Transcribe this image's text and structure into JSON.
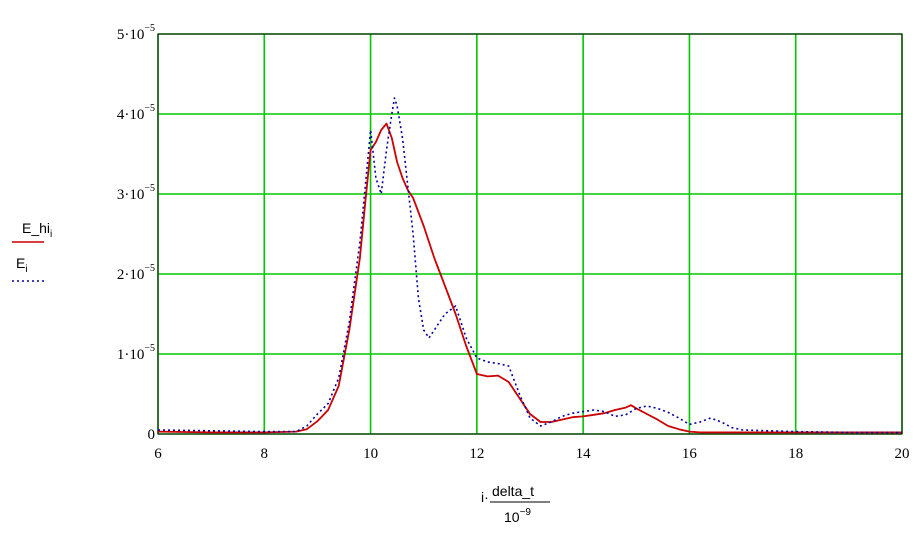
{
  "chart_data": {
    "type": "line",
    "title": "",
    "xlim": [
      6,
      20
    ],
    "ylim": [
      0,
      5e-05
    ],
    "grid": true,
    "grid_color": "#00c800",
    "x_ticks": [
      6,
      8,
      10,
      12,
      14,
      16,
      18,
      20
    ],
    "x_tick_labels": [
      "6",
      "8",
      "10",
      "12",
      "14",
      "16",
      "18",
      "20"
    ],
    "y_ticks": [
      0,
      1e-05,
      2e-05,
      3e-05,
      4e-05,
      5e-05
    ],
    "y_tick_labels": [
      {
        "mant": "0",
        "exp": ""
      },
      {
        "mant": "1·10",
        "exp": "−5"
      },
      {
        "mant": "2·10",
        "exp": "−5"
      },
      {
        "mant": "3·10",
        "exp": "−5"
      },
      {
        "mant": "4·10",
        "exp": "−5"
      },
      {
        "mant": "5·10",
        "exp": "−5"
      }
    ],
    "xlabel": {
      "prefix": "i·",
      "numerator": "delta_t",
      "denominator_base": "10",
      "denominator_exp": "−9"
    },
    "series": [
      {
        "label_main": "E_hi",
        "label_sub": "i",
        "color": "#cc0000",
        "style": "solid",
        "x": [
          6,
          7,
          8,
          8.6,
          8.8,
          9.0,
          9.2,
          9.4,
          9.6,
          9.8,
          9.9,
          10.0,
          10.1,
          10.2,
          10.3,
          10.4,
          10.5,
          10.6,
          10.7,
          10.8,
          11.0,
          11.2,
          11.4,
          11.6,
          11.8,
          12.0,
          12.2,
          12.4,
          12.6,
          12.8,
          13.0,
          13.2,
          13.4,
          13.6,
          13.8,
          14.0,
          14.2,
          14.4,
          14.6,
          14.8,
          14.9,
          15.0,
          15.2,
          15.4,
          15.6,
          15.8,
          16.0,
          16.2,
          16.5,
          17,
          18,
          19,
          20
        ],
        "y": [
          3e-07,
          2e-07,
          2e-07,
          3e-07,
          6e-07,
          1.6e-06,
          3e-06,
          6e-06,
          1.3e-05,
          2.2e-05,
          2.9e-05,
          3.55e-05,
          3.65e-05,
          3.8e-05,
          3.88e-05,
          3.7e-05,
          3.4e-05,
          3.2e-05,
          3.05e-05,
          2.95e-05,
          2.6e-05,
          2.2e-05,
          1.85e-05,
          1.5e-05,
          1.1e-05,
          7.5e-06,
          7.2e-06,
          7.3e-06,
          6.5e-06,
          4.5e-06,
          2.5e-06,
          1.5e-06,
          1.5e-06,
          1.8e-06,
          2.1e-06,
          2.2e-06,
          2.4e-06,
          2.6e-06,
          3e-06,
          3.3e-06,
          3.6e-06,
          3.2e-06,
          2.5e-06,
          1.8e-06,
          1e-06,
          6e-07,
          3e-07,
          2e-07,
          2e-07,
          2e-07,
          2e-07,
          2e-07,
          2e-07
        ]
      },
      {
        "label_main": "E",
        "label_sub": "i",
        "color": "#0000a0",
        "style": "dotted",
        "x": [
          6,
          7,
          8,
          8.6,
          8.8,
          9.0,
          9.2,
          9.4,
          9.6,
          9.8,
          9.9,
          10.0,
          10.1,
          10.2,
          10.3,
          10.4,
          10.45,
          10.5,
          10.6,
          10.7,
          10.8,
          10.9,
          11.0,
          11.1,
          11.2,
          11.4,
          11.6,
          11.8,
          12.0,
          12.2,
          12.4,
          12.6,
          12.8,
          13.0,
          13.2,
          13.4,
          13.6,
          13.8,
          14.0,
          14.2,
          14.4,
          14.6,
          14.8,
          15.0,
          15.2,
          15.4,
          15.6,
          15.8,
          16.0,
          16.2,
          16.4,
          16.6,
          16.8,
          17,
          18,
          19,
          20
        ],
        "y": [
          5e-07,
          4e-07,
          3e-07,
          3e-07,
          1e-06,
          2.5e-06,
          3.8e-06,
          7e-06,
          1.4e-05,
          2.4e-05,
          3.1e-05,
          3.8e-05,
          3.2e-05,
          3e-05,
          3.55e-05,
          4e-05,
          4.2e-05,
          4.1e-05,
          3.7e-05,
          3.1e-05,
          2.5e-05,
          1.7e-05,
          1.3e-05,
          1.2e-05,
          1.3e-05,
          1.5e-05,
          1.6e-05,
          1.2e-05,
          9.5e-06,
          9e-06,
          8.8e-06,
          8.5e-06,
          5e-06,
          2e-06,
          1e-06,
          1.5e-06,
          2.2e-06,
          2.6e-06,
          2.8e-06,
          3e-06,
          2.8e-06,
          2.2e-06,
          2.4e-06,
          3.2e-06,
          3.5e-06,
          3.2e-06,
          2.7e-06,
          2e-06,
          1.2e-06,
          1.5e-06,
          2e-06,
          1.5e-06,
          8e-07,
          5e-07,
          3e-07,
          2e-07,
          2e-07
        ]
      }
    ]
  }
}
